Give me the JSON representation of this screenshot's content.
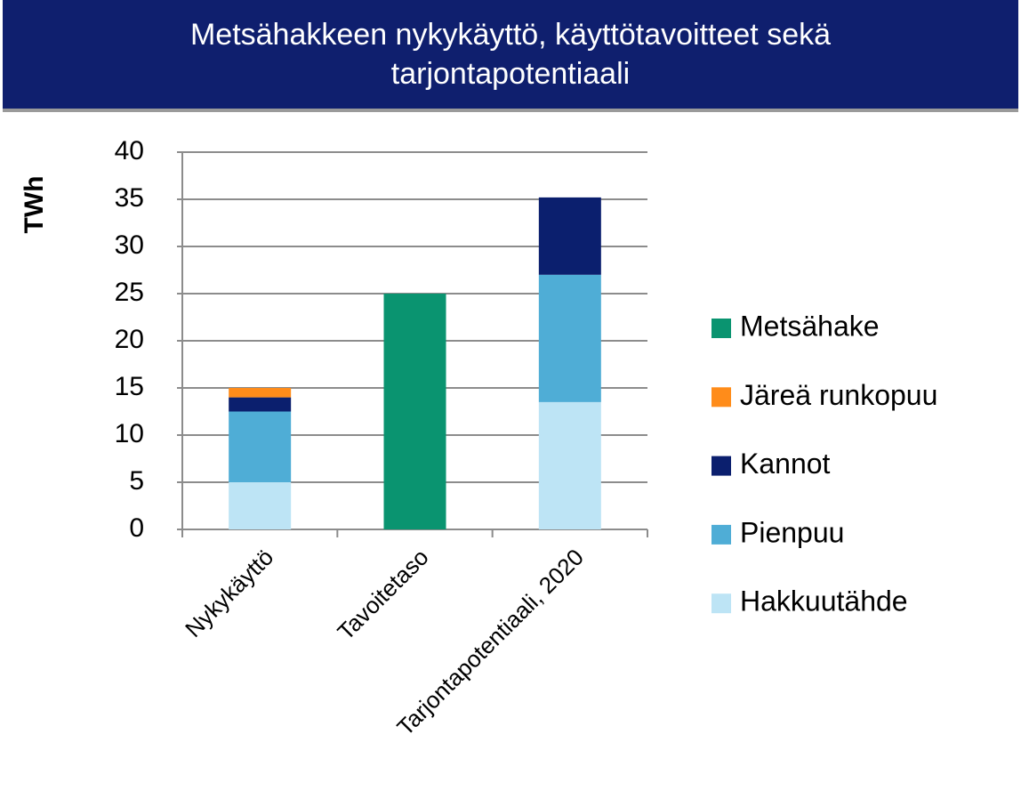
{
  "chart_data": {
    "type": "stacked-bar",
    "title": "Metsähakkeen nykykäyttö, käyttötavoitteet sekä tarjontapotentiaali",
    "y_label": "TWh",
    "categories": [
      "Nykykäyttö",
      "Tavoitetaso",
      "Tarjontapotentiaali, 2020"
    ],
    "series": [
      {
        "name": "Hakkuutähde",
        "color": "#bde4f5",
        "values": [
          5,
          null,
          13.5
        ]
      },
      {
        "name": "Pienpuu",
        "color": "#4fadd6",
        "values": [
          7.5,
          null,
          13.5
        ]
      },
      {
        "name": "Kannot",
        "color": "#0b1f6e",
        "values": [
          1.5,
          null,
          8.2
        ]
      },
      {
        "name": "Järeä runkopuu",
        "color": "#ff8c1a",
        "values": [
          1,
          null,
          null
        ]
      },
      {
        "name": "Metsähake",
        "color": "#0a9470",
        "values": [
          null,
          25,
          null
        ]
      }
    ],
    "ylim": [
      0,
      40
    ],
    "yticks": [
      0,
      5,
      10,
      15,
      20,
      25,
      30,
      35,
      40
    ],
    "grid": true,
    "legend": "right"
  }
}
